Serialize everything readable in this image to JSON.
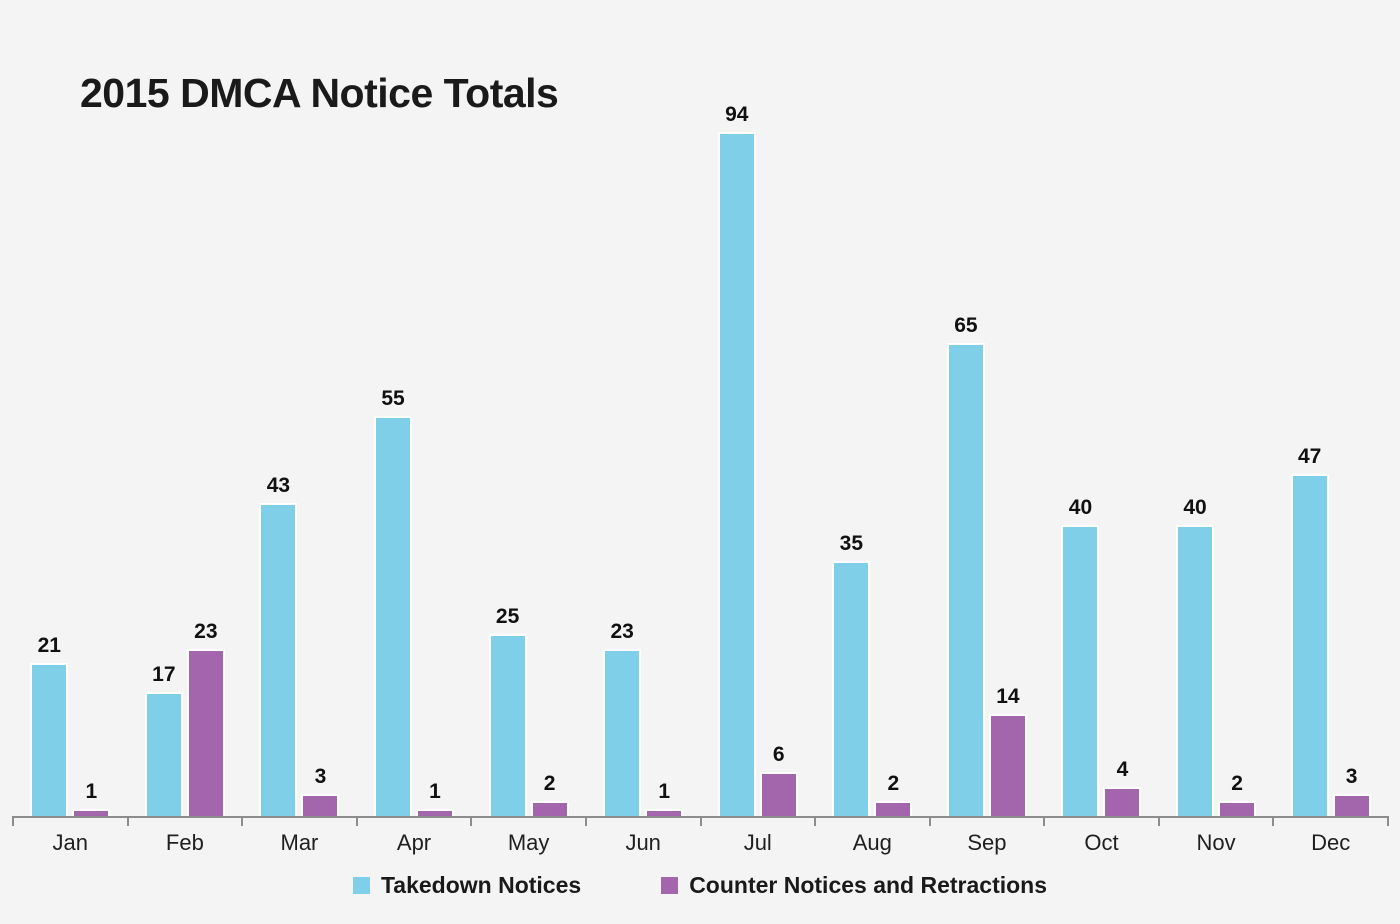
{
  "title": "2015 DMCA Notice Totals",
  "colors": {
    "background": "#F4F4F5",
    "axis": "#8C8C8C",
    "title_text": "#1A1A1A",
    "value_label_text": "#111111",
    "month_label_text": "#1F1F1F",
    "bar_border": "#FFFFFF",
    "takedown_blue": "#7FCFE9",
    "counter_purple": "#A366AC"
  },
  "chart_data": {
    "type": "bar",
    "title": "2015 DMCA Notice Totals",
    "xlabel": "",
    "ylabel": "",
    "categories": [
      "Jan",
      "Feb",
      "Mar",
      "Apr",
      "May",
      "Jun",
      "Jul",
      "Aug",
      "Sep",
      "Oct",
      "Nov",
      "Dec"
    ],
    "series": [
      {
        "name": "Takedown Notices",
        "color": "#7FCFE9",
        "values": [
          21,
          17,
          43,
          55,
          25,
          23,
          94,
          35,
          65,
          40,
          40,
          47
        ]
      },
      {
        "name": "Counter Notices and Retractions",
        "color": "#A366AC",
        "values": [
          1,
          23,
          3,
          1,
          2,
          1,
          6,
          2,
          14,
          4,
          2,
          3
        ]
      }
    ],
    "ylim": [
      0,
      94
    ],
    "grid": false,
    "y_axis_visible": false,
    "value_labels": true,
    "legend_position": "bottom"
  }
}
